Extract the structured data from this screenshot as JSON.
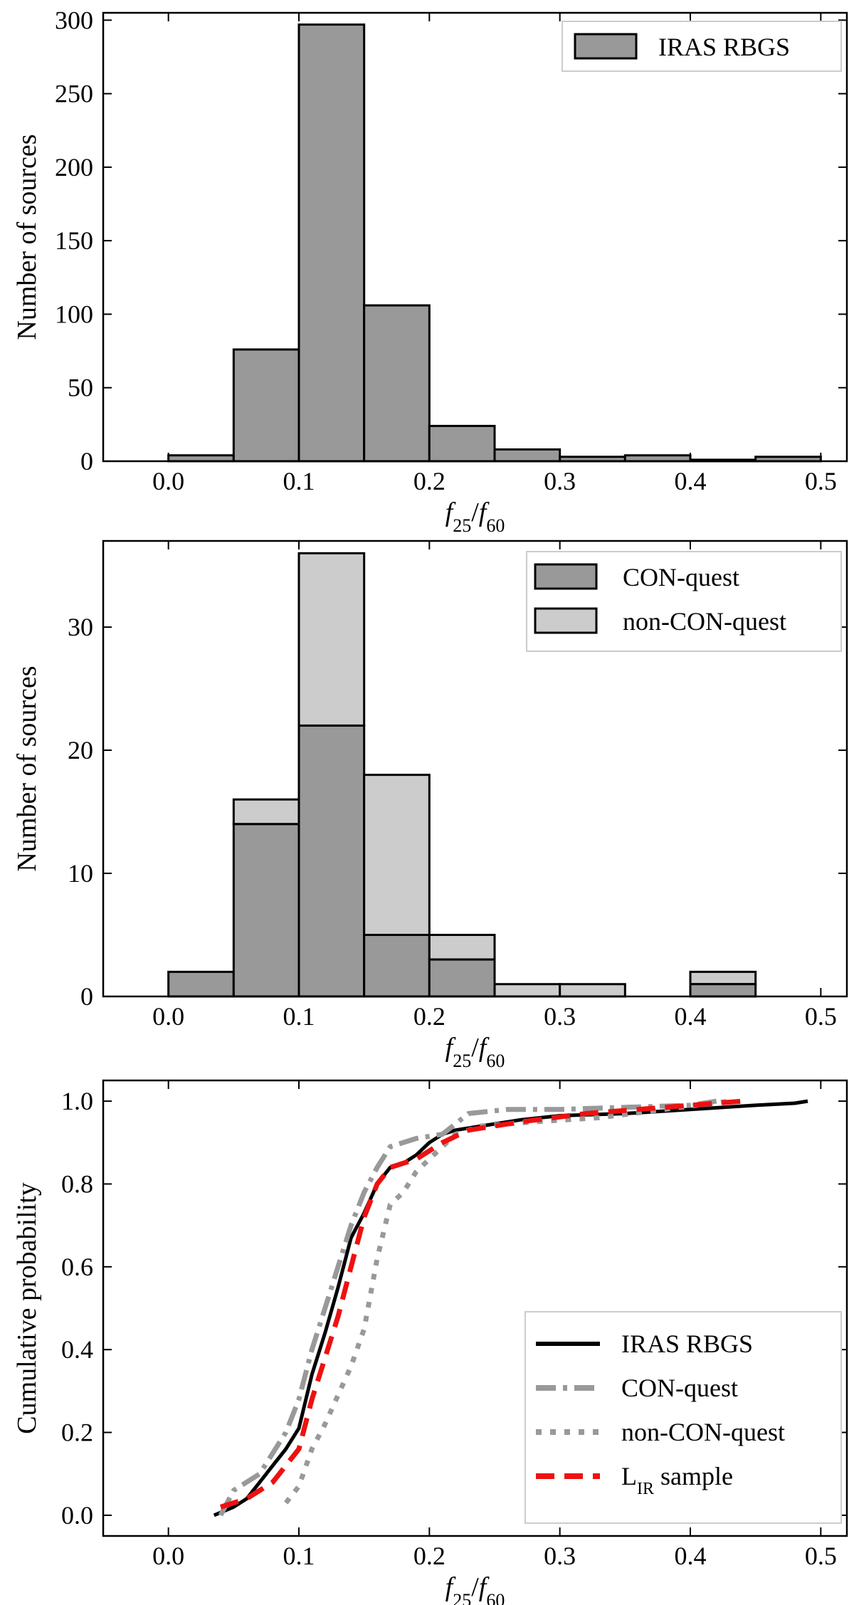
{
  "chart_data": [
    {
      "type": "bar",
      "xlabel_parts": {
        "f1": "f",
        "s1": "25",
        "slash": "/",
        "f2": "f",
        "s2": "60"
      },
      "ylabel": "Number of sources",
      "xlim": [
        -0.05,
        0.52
      ],
      "ylim": [
        0,
        305
      ],
      "xticks": [
        "0.0",
        "0.1",
        "0.2",
        "0.3",
        "0.4",
        "0.5"
      ],
      "yticks": [
        "0",
        "50",
        "100",
        "150",
        "200",
        "250",
        "300"
      ],
      "legend_position": "upper right",
      "bin_edges": [
        0.0,
        0.05,
        0.1,
        0.15,
        0.2,
        0.25,
        0.3,
        0.35,
        0.4,
        0.45,
        0.5
      ],
      "series": [
        {
          "name": "IRAS RBGS",
          "color": "#999999",
          "values": [
            4,
            76,
            297,
            106,
            24,
            8,
            3,
            4,
            1,
            3
          ]
        }
      ]
    },
    {
      "type": "bar",
      "stacked": true,
      "xlabel_parts": {
        "f1": "f",
        "s1": "25",
        "slash": "/",
        "f2": "f",
        "s2": "60"
      },
      "ylabel": "Number of sources",
      "xlim": [
        -0.05,
        0.52
      ],
      "ylim": [
        0,
        37
      ],
      "xticks": [
        "0.0",
        "0.1",
        "0.2",
        "0.3",
        "0.4",
        "0.5"
      ],
      "yticks": [
        "0",
        "10",
        "20",
        "30"
      ],
      "legend_position": "upper right",
      "bin_edges": [
        0.0,
        0.05,
        0.1,
        0.15,
        0.2,
        0.25,
        0.3,
        0.35,
        0.4,
        0.45,
        0.5
      ],
      "series": [
        {
          "name": "CON-quest",
          "color": "#999999",
          "values": [
            2,
            14,
            22,
            5,
            3,
            0,
            0,
            0,
            1,
            0
          ]
        },
        {
          "name": "non-CON-quest",
          "color": "#cccccc",
          "values": [
            0,
            2,
            14,
            13,
            2,
            1,
            1,
            0,
            1,
            0
          ]
        }
      ]
    },
    {
      "type": "line",
      "xlabel_parts": {
        "f1": "f",
        "s1": "25",
        "slash": "/",
        "f2": "f",
        "s2": "60"
      },
      "ylabel": "Cumulative probability",
      "xlim": [
        -0.05,
        0.52
      ],
      "ylim": [
        -0.05,
        1.05
      ],
      "xticks": [
        "0.0",
        "0.1",
        "0.2",
        "0.3",
        "0.4",
        "0.5"
      ],
      "yticks": [
        "0.0",
        "0.2",
        "0.4",
        "0.6",
        "0.8",
        "1.0"
      ],
      "legend_position": "lower right",
      "series": [
        {
          "name": "IRAS RBGS",
          "color": "#000000",
          "style": "solid",
          "x": [
            0.035,
            0.05,
            0.06,
            0.07,
            0.08,
            0.09,
            0.1,
            0.11,
            0.12,
            0.13,
            0.14,
            0.15,
            0.16,
            0.17,
            0.18,
            0.19,
            0.2,
            0.21,
            0.22,
            0.24,
            0.27,
            0.3,
            0.35,
            0.4,
            0.45,
            0.48,
            0.49
          ],
          "y": [
            0.0,
            0.02,
            0.04,
            0.08,
            0.12,
            0.16,
            0.21,
            0.34,
            0.44,
            0.55,
            0.67,
            0.73,
            0.8,
            0.84,
            0.85,
            0.87,
            0.9,
            0.92,
            0.93,
            0.94,
            0.955,
            0.965,
            0.97,
            0.98,
            0.99,
            0.995,
            1.0
          ]
        },
        {
          "name": "CON-quest",
          "color": "#999999",
          "style": "dashdot",
          "x": [
            0.04,
            0.05,
            0.07,
            0.08,
            0.09,
            0.1,
            0.11,
            0.12,
            0.13,
            0.14,
            0.15,
            0.16,
            0.17,
            0.19,
            0.21,
            0.23,
            0.26,
            0.3,
            0.35,
            0.4,
            0.42
          ],
          "y": [
            0.0,
            0.06,
            0.1,
            0.15,
            0.2,
            0.28,
            0.4,
            0.5,
            0.6,
            0.7,
            0.78,
            0.84,
            0.89,
            0.91,
            0.92,
            0.97,
            0.98,
            0.98,
            0.985,
            0.99,
            1.0
          ]
        },
        {
          "name": "non-CON-quest",
          "color": "#999999",
          "style": "dotted",
          "x": [
            0.09,
            0.1,
            0.11,
            0.12,
            0.13,
            0.14,
            0.15,
            0.16,
            0.17,
            0.18,
            0.19,
            0.2,
            0.22,
            0.24,
            0.28,
            0.33,
            0.38,
            0.43
          ],
          "y": [
            0.03,
            0.07,
            0.16,
            0.22,
            0.29,
            0.36,
            0.45,
            0.62,
            0.75,
            0.78,
            0.83,
            0.86,
            0.92,
            0.94,
            0.95,
            0.96,
            0.98,
            1.0
          ]
        },
        {
          "name": "L_IR sample",
          "color": "#ee1111",
          "style": "dashed",
          "x": [
            0.04,
            0.06,
            0.08,
            0.1,
            0.11,
            0.12,
            0.13,
            0.14,
            0.15,
            0.16,
            0.17,
            0.19,
            0.21,
            0.23,
            0.27,
            0.32,
            0.38,
            0.44
          ],
          "y": [
            0.02,
            0.04,
            0.08,
            0.16,
            0.28,
            0.38,
            0.48,
            0.6,
            0.72,
            0.8,
            0.84,
            0.86,
            0.9,
            0.93,
            0.95,
            0.97,
            0.985,
            1.0
          ]
        }
      ]
    }
  ],
  "legend_labels": {
    "lir_main": "L",
    "lir_sub": "IR",
    "lir_rest": " sample"
  }
}
